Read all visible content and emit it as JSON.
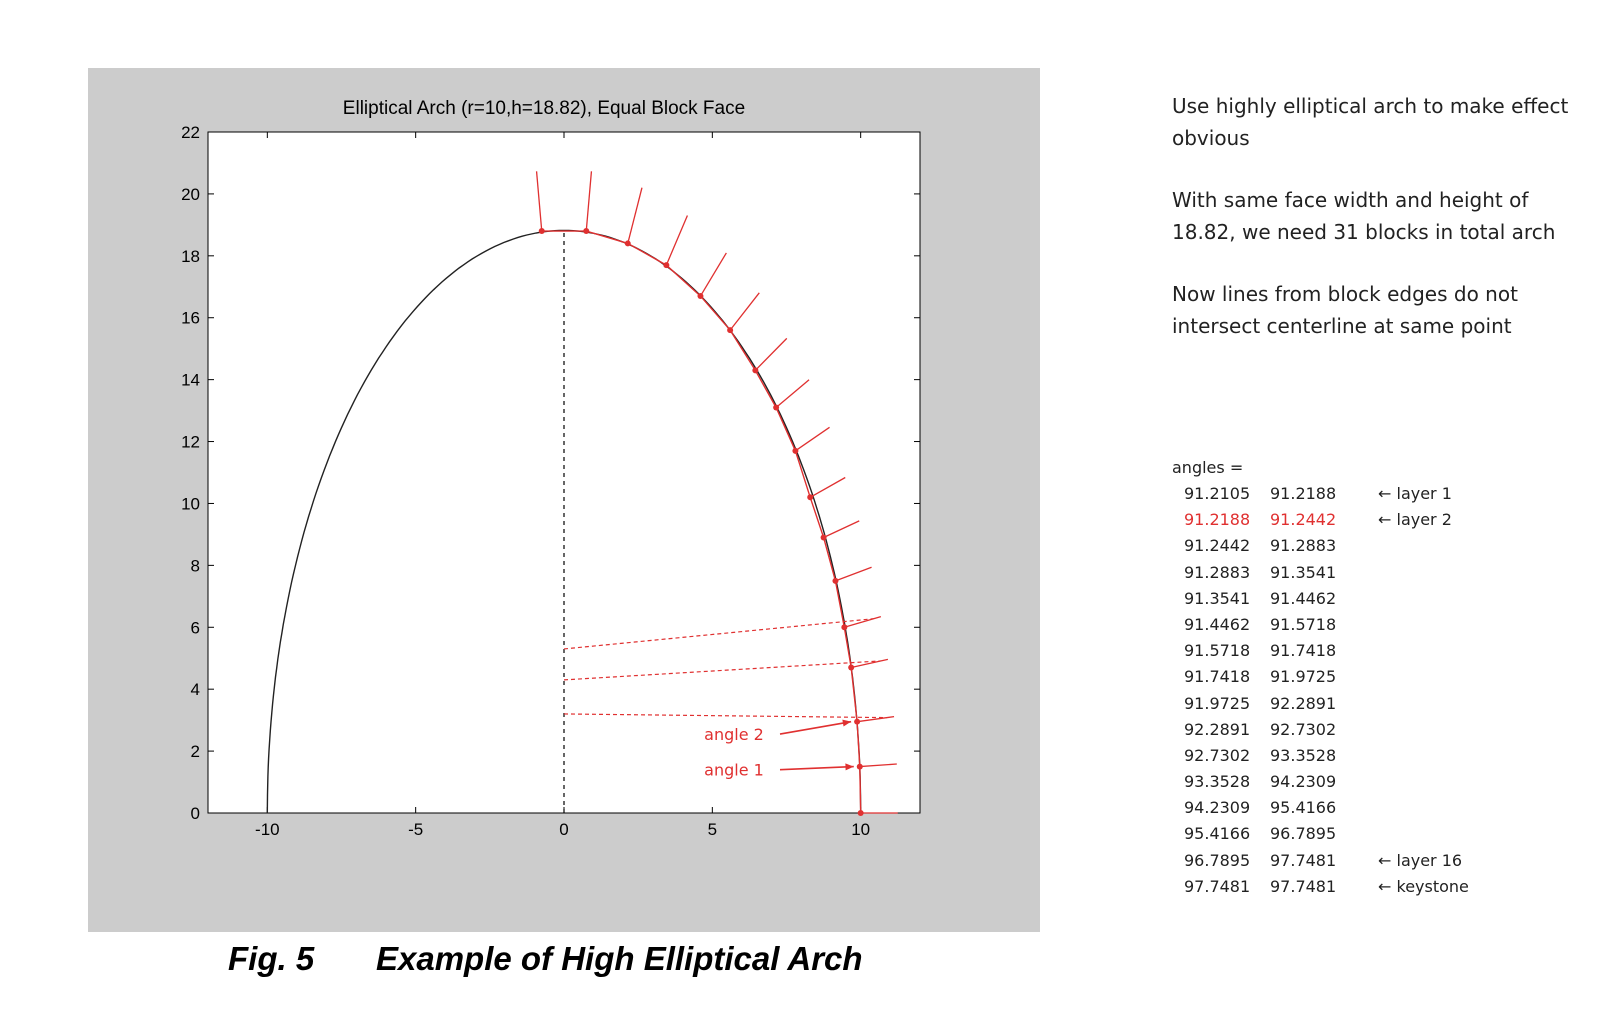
{
  "chart_data": {
    "type": "line",
    "title": "Elliptical Arch (r=10,h=18.82), Equal Block Face",
    "xlabel": "",
    "ylabel": "",
    "xlim": [
      -12,
      12
    ],
    "ylim": [
      0,
      22
    ],
    "x_ticks": [
      -10,
      -5,
      0,
      5,
      10
    ],
    "y_ticks": [
      0,
      2,
      4,
      6,
      8,
      10,
      12,
      14,
      16,
      18,
      20,
      22
    ],
    "grid": false,
    "ellipse": {
      "a": 10,
      "b": 18.82
    },
    "block_edge_points": [
      {
        "x": 10.0,
        "y": 0.0
      },
      {
        "x": 9.97,
        "y": 1.5
      },
      {
        "x": 9.88,
        "y": 2.95
      },
      {
        "x": 9.68,
        "y": 4.7
      },
      {
        "x": 9.45,
        "y": 6.0
      },
      {
        "x": 9.15,
        "y": 7.5
      },
      {
        "x": 8.75,
        "y": 8.9
      },
      {
        "x": 8.3,
        "y": 10.2
      },
      {
        "x": 7.8,
        "y": 11.7
      },
      {
        "x": 7.15,
        "y": 13.1
      },
      {
        "x": 6.45,
        "y": 14.3
      },
      {
        "x": 5.6,
        "y": 15.6
      },
      {
        "x": 4.6,
        "y": 16.7
      },
      {
        "x": 3.45,
        "y": 17.7
      },
      {
        "x": 2.15,
        "y": 18.4
      },
      {
        "x": 0.75,
        "y": 18.8
      },
      {
        "x": -0.75,
        "y": 18.8
      }
    ],
    "centerline_intersections": [
      {
        "from_index": 2,
        "y_on_centerline": 3.2
      },
      {
        "from_index": 3,
        "y_on_centerline": 4.3
      },
      {
        "from_index": 4,
        "y_on_centerline": 5.3
      }
    ],
    "annotations": [
      {
        "text": "angle 2",
        "x": 6.0,
        "y": 2.55
      },
      {
        "text": "angle 1",
        "x": 6.0,
        "y": 1.4
      }
    ]
  },
  "caption": {
    "fig": "Fig. 5",
    "title": "Example of High Elliptical Arch"
  },
  "notes": [
    "Use highly elliptical arch to make effect obvious",
    "With same face width and height of 18.82, we need 31 blocks in total arch",
    "Now lines from block edges do not intersect centerline at same point"
  ],
  "angles_header": "angles =",
  "angles_rows": [
    {
      "a": "91.2105",
      "b": "91.2188",
      "label": "← layer 1"
    },
    {
      "a": "91.2188",
      "b": "91.2442",
      "label": "← layer 2",
      "highlight": true
    },
    {
      "a": "91.2442",
      "b": "91.2883",
      "label": ""
    },
    {
      "a": "91.2883",
      "b": "91.3541",
      "label": ""
    },
    {
      "a": "91.3541",
      "b": "91.4462",
      "label": ""
    },
    {
      "a": "91.4462",
      "b": "91.5718",
      "label": ""
    },
    {
      "a": "91.5718",
      "b": "91.7418",
      "label": ""
    },
    {
      "a": "91.7418",
      "b": "91.9725",
      "label": ""
    },
    {
      "a": "91.9725",
      "b": "92.2891",
      "label": ""
    },
    {
      "a": "92.2891",
      "b": "92.7302",
      "label": ""
    },
    {
      "a": "92.7302",
      "b": "93.3528",
      "label": ""
    },
    {
      "a": "93.3528",
      "b": "94.2309",
      "label": ""
    },
    {
      "a": "94.2309",
      "b": "95.4166",
      "label": ""
    },
    {
      "a": "95.4166",
      "b": "96.7895",
      "label": ""
    },
    {
      "a": "96.7895",
      "b": "97.7481",
      "label": "← layer 16"
    },
    {
      "a": "97.7481",
      "b": "97.7481",
      "label": "← keystone"
    }
  ],
  "colors": {
    "arch": "#222222",
    "blocks": "#e03030",
    "panel_bg": "#cccccc"
  }
}
